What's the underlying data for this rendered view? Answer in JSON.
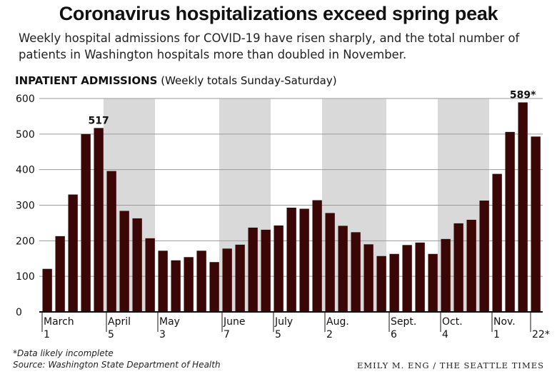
{
  "title": "Coronavirus hospitalizations exceed spring peak",
  "subtitle": "Weekly hospital admissions for COVID-19 have risen sharply, and the total number of patients in Washington hospitals more than doubled in November.",
  "panel_title_bold": "INPATIENT ADMISSIONS",
  "panel_title_rest": "(Weekly totals Sunday-Saturday)",
  "footnote": "*Data likely incomplete",
  "source": "Source: Washington State Department of Health",
  "credit": "EMILY M. ENG / THE SEATTLE TIMES",
  "colors": {
    "bar": "#3a0606",
    "band": "#d9d9d9",
    "grid": "#9a9a9a",
    "axis": "#111111"
  },
  "chart_data": {
    "type": "bar",
    "series": [
      {
        "values": [
          121,
          213,
          330,
          500,
          517,
          396,
          284,
          263,
          207,
          172,
          145,
          154,
          172,
          140,
          178,
          189,
          237,
          231,
          243,
          293,
          290,
          314,
          278,
          242,
          224,
          190,
          157,
          163,
          188,
          195,
          163,
          205,
          249,
          259,
          313,
          388,
          506,
          589,
          493
        ]
      }
    ],
    "ylim": [
      0,
      600
    ],
    "yticks": [
      0,
      100,
      200,
      300,
      400,
      500,
      600
    ],
    "month_ticks": [
      {
        "index": 0,
        "month": "March",
        "day": "1"
      },
      {
        "index": 5,
        "month": "April",
        "day": "5"
      },
      {
        "index": 9,
        "month": "May",
        "day": "3"
      },
      {
        "index": 14,
        "month": "June",
        "day": "7"
      },
      {
        "index": 18,
        "month": "July",
        "day": "5"
      },
      {
        "index": 22,
        "month": "Aug.",
        "day": "2"
      },
      {
        "index": 27,
        "month": "Sept.",
        "day": "6"
      },
      {
        "index": 31,
        "month": "Oct.",
        "day": "4"
      },
      {
        "index": 35,
        "month": "Nov.",
        "day": "1"
      },
      {
        "index": 38,
        "month": "",
        "day": "22*"
      }
    ],
    "shaded_ranges": [
      [
        5,
        8
      ],
      [
        14,
        17
      ],
      [
        22,
        26
      ],
      [
        31,
        34
      ]
    ],
    "annotations": [
      {
        "index": 4,
        "text": "517"
      },
      {
        "index": 37,
        "text": "589*"
      }
    ],
    "grid": true
  }
}
